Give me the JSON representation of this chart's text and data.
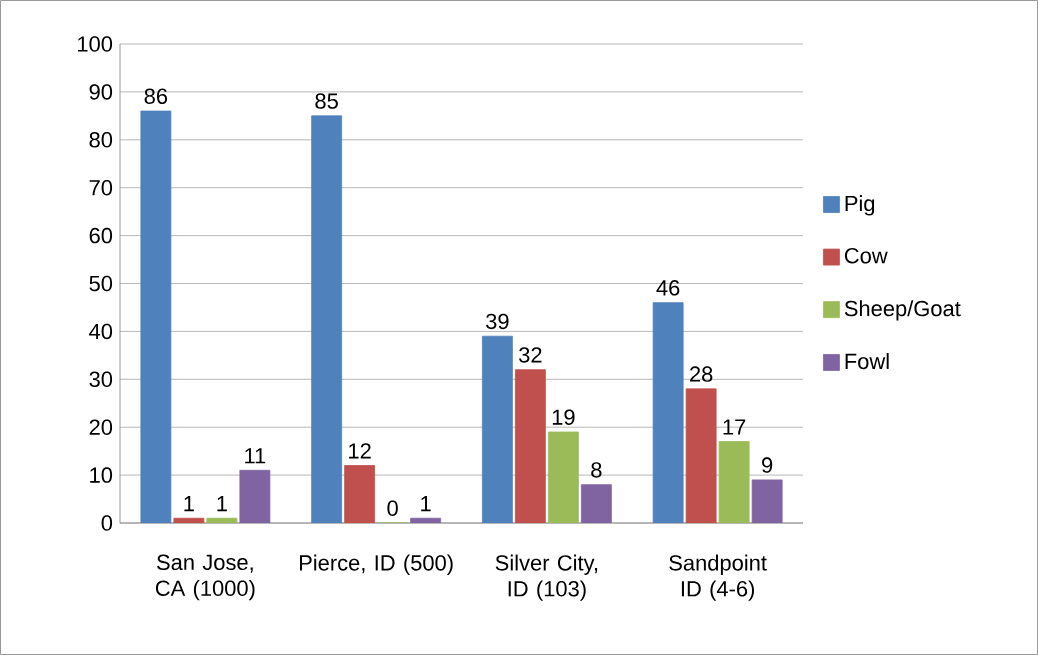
{
  "chart_data": {
    "type": "bar",
    "categories": [
      "San Jose, CA (1000)",
      "Pierce, ID (500)",
      "Silver City, ID (103)",
      "Sandpoint ID (4-6)"
    ],
    "series": [
      {
        "name": "Pig",
        "color": "#4f81bd",
        "values": [
          86,
          85,
          39,
          46
        ]
      },
      {
        "name": "Cow",
        "color": "#c0504d",
        "values": [
          1,
          12,
          32,
          28
        ]
      },
      {
        "name": "Sheep/Goat",
        "color": "#9bbb59",
        "values": [
          1,
          0,
          19,
          17
        ]
      },
      {
        "name": "Fowl",
        "color": "#8064a2",
        "values": [
          11,
          1,
          8,
          9
        ]
      }
    ],
    "ylim": [
      0,
      100
    ],
    "yticks": [
      0,
      10,
      20,
      30,
      40,
      50,
      60,
      70,
      80,
      90,
      100
    ],
    "grid": "y",
    "legend": "right",
    "data_labels": true
  }
}
